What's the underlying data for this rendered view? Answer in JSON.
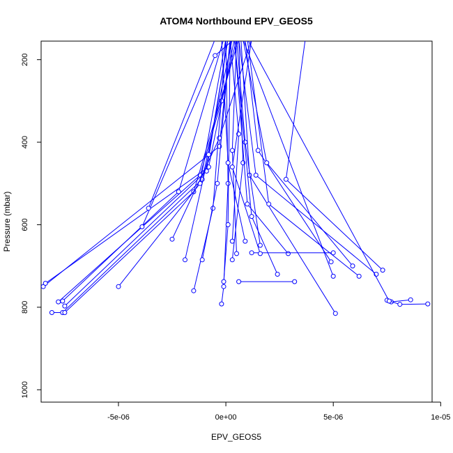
{
  "chart_data": {
    "type": "line",
    "title": "ATOM4 Northbound EPV_GEOS5",
    "xlabel": "EPV_GEOS5",
    "ylabel": "Pressure (mbar)",
    "xlim": [
      -8.6e-06,
      9.6e-06
    ],
    "ylim": [
      1030,
      155
    ],
    "y_reversed": true,
    "xticks": [
      {
        "value": -5e-06,
        "label": "-5e-06"
      },
      {
        "value": 0,
        "label": "0e+00"
      },
      {
        "value": 5e-06,
        "label": "5e-06"
      },
      {
        "value": 1e-05,
        "label": "1e-05"
      }
    ],
    "yticks": [
      {
        "value": 200,
        "label": "200"
      },
      {
        "value": 400,
        "label": "400"
      },
      {
        "value": 600,
        "label": "600"
      },
      {
        "value": 800,
        "label": "800"
      },
      {
        "value": 1000,
        "label": "1000"
      }
    ],
    "grid": false,
    "legend": "none",
    "series_color": "#0000ff",
    "series": [
      {
        "x": [
          -8.5e-06,
          -3e-07,
          2e-07,
          8e-07
        ],
        "y": [
          750,
          410,
          150,
          150
        ]
      },
      {
        "x": [
          -8.4e-06,
          -8e-07,
          4e-07
        ],
        "y": [
          742,
          460,
          150
        ]
      },
      {
        "x": [
          -7.8e-06,
          -1.2e-06,
          -2e-07,
          5e-07
        ],
        "y": [
          787,
          480,
          300,
          150
        ]
      },
      {
        "x": [
          -7.6e-06,
          -2.2e-06,
          -1e-07
        ],
        "y": [
          785,
          520,
          150
        ]
      },
      {
        "x": [
          -7.5e-06,
          -9e-07,
          1e-07
        ],
        "y": [
          797,
          470,
          150
        ]
      },
      {
        "x": [
          -8.1e-06,
          -7.6e-06,
          -1.1e-06,
          3e-07
        ],
        "y": [
          813,
          813,
          490,
          150
        ]
      },
      {
        "x": [
          -7.5e-06,
          -1.5e-06,
          6e-07
        ],
        "y": [
          813,
          520,
          150
        ]
      },
      {
        "x": [
          -5e-06,
          -1.2e-06,
          0.0
        ],
        "y": [
          750,
          500,
          150
        ]
      },
      {
        "x": [
          -3.9e-06,
          -5e-07,
          4e-07
        ],
        "y": [
          605,
          190,
          150
        ]
      },
      {
        "x": [
          -3.6e-06,
          -5e-07
        ],
        "y": [
          560,
          150
        ]
      },
      {
        "x": [
          -2.5e-06,
          -3e-07,
          1.2e-06
        ],
        "y": [
          635,
          390,
          150
        ]
      },
      {
        "x": [
          -1.9e-06,
          -8e-07,
          1e-07
        ],
        "y": [
          685,
          430,
          150
        ]
      },
      {
        "x": [
          -1.5e-06,
          -6e-07,
          0.0
        ],
        "y": [
          760,
          560,
          150
        ]
      },
      {
        "x": [
          -1.1e-06,
          -4e-07,
          2e-07
        ],
        "y": [
          685,
          500,
          150
        ]
      },
      {
        "x": [
          -2e-07,
          -1e-07,
          1e-07,
          0.0
        ],
        "y": [
          792,
          750,
          500,
          150
        ]
      },
      {
        "x": [
          -1e-07,
          1e-07,
          2e-07
        ],
        "y": [
          738,
          600,
          150
        ]
      },
      {
        "x": [
          3e-07,
          6e-07,
          2e-07
        ],
        "y": [
          640,
          380,
          150
        ]
      },
      {
        "x": [
          5e-07,
          3e-07,
          5e-07
        ],
        "y": [
          670,
          420,
          150
        ]
      },
      {
        "x": [
          6e-07,
          3.2e-06
        ],
        "y": [
          738,
          738
        ]
      },
      {
        "x": [
          3e-07,
          8e-07,
          6e-07
        ],
        "y": [
          685,
          450,
          150
        ]
      },
      {
        "x": [
          5.1e-06,
          1.1e-06,
          7e-07
        ],
        "y": [
          815,
          480,
          150
        ]
      },
      {
        "x": [
          4.9e-06,
          1.5e-06,
          9e-07
        ],
        "y": [
          690,
          420,
          150
        ]
      },
      {
        "x": [
          5e-06,
          8e-07
        ],
        "y": [
          725,
          150
        ]
      },
      {
        "x": [
          2.9e-06,
          1e-06,
          4e-07
        ],
        "y": [
          670,
          550,
          150
        ]
      },
      {
        "x": [
          1.2e-06,
          5e-06
        ],
        "y": [
          668,
          668
        ]
      },
      {
        "x": [
          5.9e-06,
          1.9e-06,
          8e-07
        ],
        "y": [
          700,
          450,
          150
        ]
      },
      {
        "x": [
          6.2e-06,
          2e-06,
          1e-06
        ],
        "y": [
          725,
          550,
          150
        ]
      },
      {
        "x": [
          7e-06,
          1.4e-06,
          6e-07
        ],
        "y": [
          720,
          480,
          150
        ]
      },
      {
        "x": [
          7.3e-06,
          2.8e-06,
          3.7e-06
        ],
        "y": [
          710,
          490,
          150
        ]
      },
      {
        "x": [
          7.7e-06,
          8.6e-06
        ],
        "y": [
          787,
          782
        ]
      },
      {
        "x": [
          7.5e-06,
          8.1e-06,
          9.4e-06
        ],
        "y": [
          783,
          793,
          792
        ]
      },
      {
        "x": [
          7.6e-06,
          1e-06
        ],
        "y": [
          785,
          150
        ]
      },
      {
        "x": [
          1.6e-06,
          9e-07,
          5e-07
        ],
        "y": [
          650,
          400,
          150
        ]
      },
      {
        "x": [
          2.4e-06,
          1.2e-06,
          4e-07
        ],
        "y": [
          720,
          580,
          150
        ]
      },
      {
        "x": [
          9e-07,
          1e-07,
          -2e-07
        ],
        "y": [
          640,
          450,
          150
        ]
      },
      {
        "x": [
          1.6e-06,
          3e-07,
          1.2e-06
        ],
        "y": [
          670,
          460,
          150
        ]
      }
    ]
  }
}
